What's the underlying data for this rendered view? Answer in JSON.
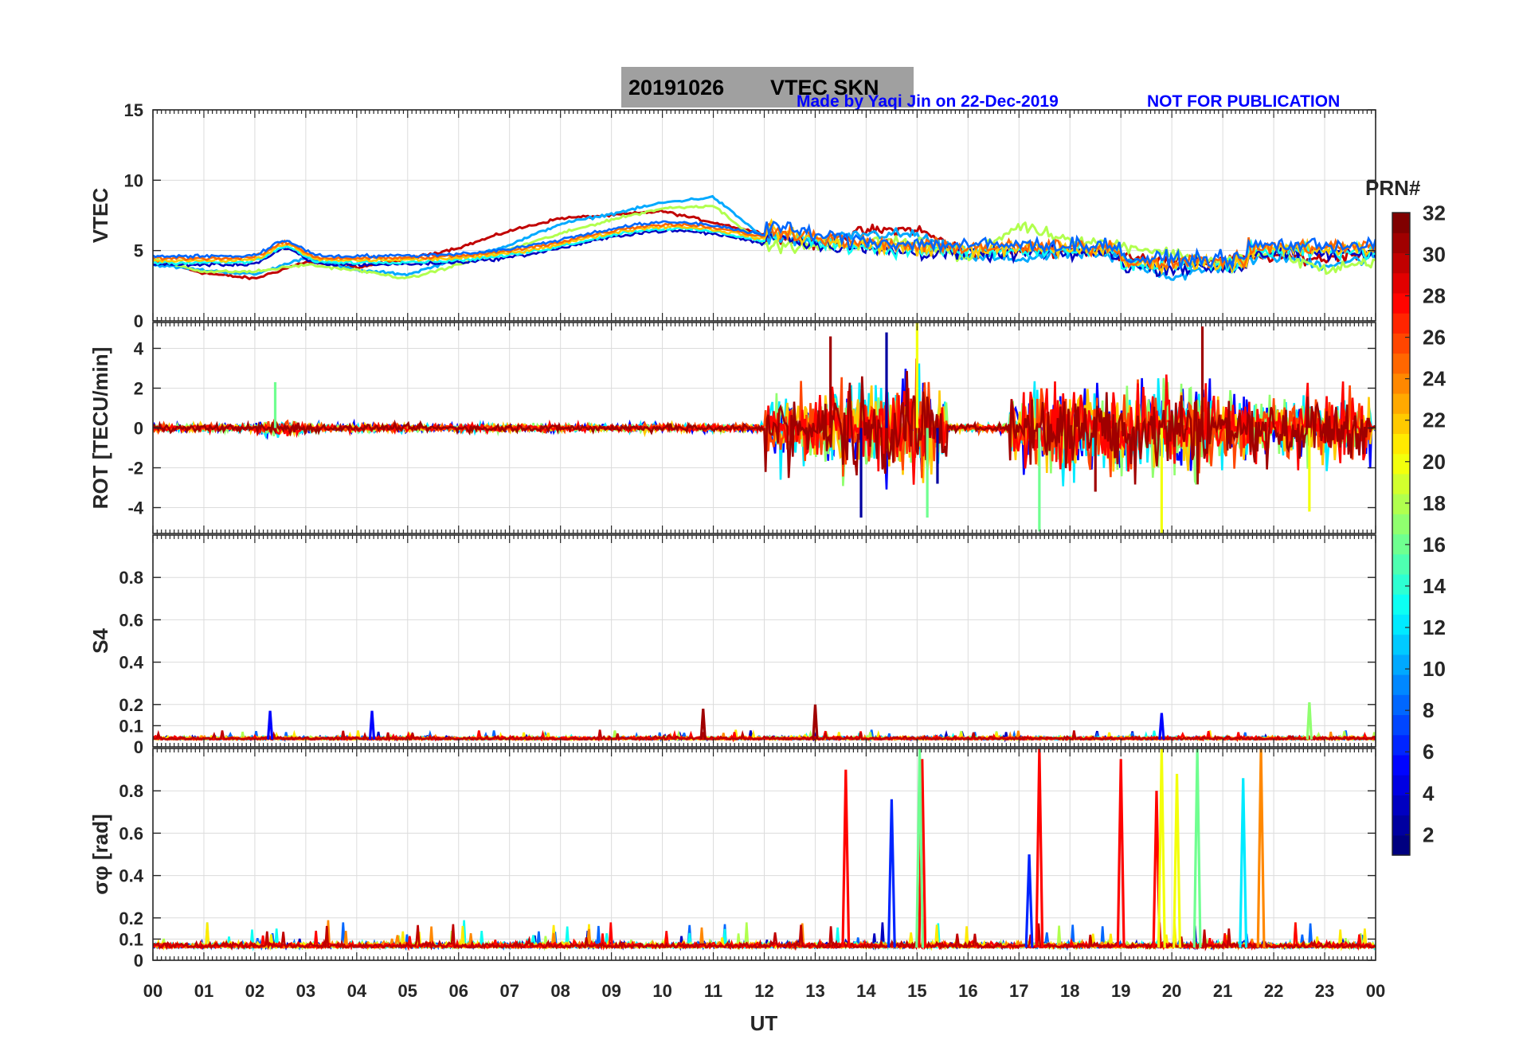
{
  "header": {
    "title_date": "20191026",
    "title_label": "VTEC  SKN",
    "credit": "Made by Yaqi Jin on 22-Dec-2019",
    "notice": "NOT FOR PUBLICATION"
  },
  "colors": {
    "title_box": "#a0a0a0",
    "notes": "#0000ff",
    "axes": "#262626",
    "grid": "#dcdcdc"
  },
  "colorbar": {
    "label": "PRN#",
    "colormap": "jet",
    "range": [
      1,
      32
    ],
    "ticks": [
      "2",
      "4",
      "6",
      "8",
      "10",
      "12",
      "14",
      "16",
      "18",
      "20",
      "22",
      "24",
      "26",
      "28",
      "30",
      "32"
    ]
  },
  "chart_data": [
    {
      "type": "line",
      "panel": "vtec",
      "ylabel": "VTEC",
      "xlim": [
        0,
        24
      ],
      "ylim": [
        0,
        15
      ],
      "yticks": [
        0,
        5,
        10,
        15
      ],
      "ytick_labels": [
        "0",
        "5",
        "10",
        "15"
      ],
      "grid": true,
      "series": [
        {
          "prn": 30,
          "x": [
            0,
            1,
            2,
            3,
            4,
            5,
            6,
            7,
            8,
            9,
            10,
            11,
            12,
            13,
            14,
            15,
            16,
            17,
            18,
            19,
            20,
            21,
            22,
            23,
            24
          ],
          "y": [
            4.3,
            3.4,
            3.0,
            4.2,
            3.8,
            4.4,
            5.2,
            6.4,
            7.3,
            7.5,
            7.8,
            7.0,
            6.2,
            5.4,
            6.4,
            6.5,
            4.8,
            5.0,
            5.0,
            4.8,
            4.1,
            4.3,
            4.6,
            4.4,
            5.0
          ]
        },
        {
          "prn": 10,
          "x": [
            0,
            1,
            2,
            3,
            4,
            5,
            6,
            7,
            8,
            9,
            10,
            11,
            12,
            13,
            14,
            15,
            16,
            17,
            18,
            19,
            20,
            21,
            22,
            23,
            24
          ],
          "y": [
            4.0,
            3.6,
            3.3,
            4.5,
            3.6,
            3.3,
            4.4,
            5.4,
            6.9,
            7.6,
            8.4,
            8.8,
            5.9,
            5.5,
            6.2,
            6.1,
            4.5,
            4.4,
            4.8,
            4.5,
            3.1,
            3.8,
            4.6,
            4.0,
            4.5
          ]
        },
        {
          "prn": 18,
          "x": [
            0,
            1,
            2,
            3,
            4,
            5,
            6,
            7,
            8,
            9,
            10,
            11,
            12,
            13,
            14,
            15,
            16,
            17,
            18,
            19,
            20,
            21,
            22,
            23,
            24
          ],
          "y": [
            4.4,
            3.5,
            3.5,
            4.0,
            3.6,
            3.0,
            4.0,
            5.1,
            6.2,
            7.2,
            8.0,
            8.2,
            5.4,
            5.2,
            5.6,
            5.7,
            4.4,
            6.8,
            5.8,
            5.4,
            4.8,
            4.2,
            4.9,
            3.6,
            4.3
          ]
        }
      ]
    },
    {
      "type": "line",
      "panel": "rot",
      "ylabel": "ROT [TECU/min]",
      "xlim": [
        0,
        24
      ],
      "ylim": [
        -5.3,
        5.3
      ],
      "yticks": [
        -4,
        -2,
        0,
        2,
        4
      ],
      "ytick_labels": [
        "-4",
        "-2",
        "0",
        "2",
        "4"
      ],
      "grid": true,
      "series": [
        {
          "prn": 2,
          "x": [
            13.9,
            14.4,
            15.4
          ],
          "y": [
            -4.5,
            4.8,
            -2.8
          ]
        },
        {
          "prn": 16,
          "x": [
            2.4,
            15.2,
            17.4
          ],
          "y": [
            2.3,
            -4.5,
            -5.2
          ]
        },
        {
          "prn": 20,
          "x": [
            15.0,
            19.8,
            22.7
          ],
          "y": [
            5.3,
            -5.3,
            -4.2
          ]
        },
        {
          "prn": 31,
          "x": [
            20.6,
            13.3,
            18.5
          ],
          "y": [
            5.1,
            4.6,
            -3.2
          ]
        }
      ]
    },
    {
      "type": "line",
      "panel": "s4",
      "ylabel": "S4",
      "xlim": [
        0,
        24
      ],
      "ylim": [
        0,
        1
      ],
      "yticks": [
        0,
        0.1,
        0.2,
        0.4,
        0.6,
        0.8
      ],
      "ytick_labels": [
        "0",
        "0.1",
        "0.2",
        "0.4",
        "0.6",
        "0.8"
      ],
      "grid": true,
      "series": [
        {
          "prn": 31,
          "x": [
            10.8,
            13.0
          ],
          "y": [
            0.18,
            0.2
          ]
        },
        {
          "prn": 5,
          "x": [
            2.3,
            4.3,
            19.8
          ],
          "y": [
            0.17,
            0.17,
            0.16
          ]
        },
        {
          "prn": 17,
          "x": [
            22.7
          ],
          "y": [
            0.21
          ]
        }
      ]
    },
    {
      "type": "line",
      "panel": "sigma_phi",
      "ylabel": "σφ [rad]",
      "xlim": [
        0,
        24
      ],
      "ylim": [
        0,
        1
      ],
      "yticks": [
        0,
        0.1,
        0.2,
        0.4,
        0.6,
        0.8
      ],
      "ytick_labels": [
        "0",
        "0.1",
        "0.2",
        "0.4",
        "0.6",
        "0.8"
      ],
      "xlabel": "UT",
      "xtick_labels": [
        "00",
        "01",
        "02",
        "03",
        "04",
        "05",
        "06",
        "07",
        "08",
        "09",
        "10",
        "11",
        "12",
        "13",
        "14",
        "15",
        "16",
        "17",
        "18",
        "19",
        "20",
        "21",
        "22",
        "23",
        "00"
      ],
      "grid": true,
      "series": [
        {
          "prn": 28,
          "x": [
            13.6,
            15.1,
            17.4,
            19.0,
            19.7
          ],
          "y": [
            0.9,
            0.95,
            1.0,
            0.95,
            0.8
          ]
        },
        {
          "prn": 6,
          "x": [
            14.5,
            17.2
          ],
          "y": [
            0.76,
            0.5
          ]
        },
        {
          "prn": 16,
          "x": [
            15.05,
            20.5
          ],
          "y": [
            1.0,
            1.0
          ]
        },
        {
          "prn": 12,
          "x": [
            21.4
          ],
          "y": [
            0.86
          ]
        },
        {
          "prn": 24,
          "x": [
            21.75
          ],
          "y": [
            1.0
          ]
        },
        {
          "prn": 20,
          "x": [
            19.8,
            20.1
          ],
          "y": [
            1.0,
            0.88
          ]
        }
      ]
    }
  ]
}
